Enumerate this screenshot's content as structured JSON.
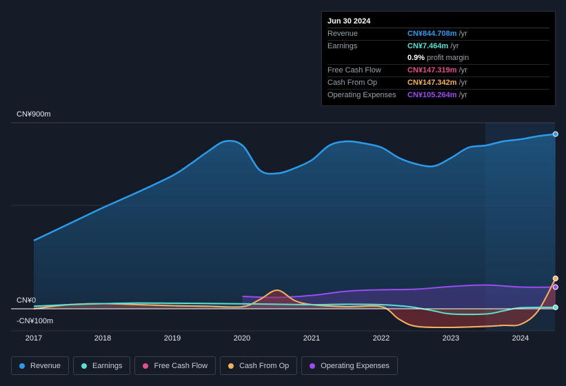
{
  "tooltip": {
    "date": "Jun 30 2024",
    "rows": [
      {
        "label": "Revenue",
        "value": "CN¥844.708m",
        "unit": "/yr",
        "color": "#2e9bea"
      },
      {
        "label": "Earnings",
        "value": "CN¥7.464m",
        "unit": "/yr",
        "color": "#5ee0d0"
      },
      {
        "label": "",
        "value": "0.9%",
        "unit": "profit margin",
        "color": "#ffffff"
      },
      {
        "label": "Free Cash Flow",
        "value": "CN¥147.319m",
        "unit": "/yr",
        "color": "#e0508a"
      },
      {
        "label": "Cash From Op",
        "value": "CN¥147.342m",
        "unit": "/yr",
        "color": "#f0b060"
      },
      {
        "label": "Operating Expenses",
        "value": "CN¥105.264m",
        "unit": "/yr",
        "color": "#9b4cf0"
      }
    ]
  },
  "legend": [
    {
      "label": "Revenue",
      "color": "#2e9bea"
    },
    {
      "label": "Earnings",
      "color": "#5ee0d0"
    },
    {
      "label": "Free Cash Flow",
      "color": "#e0508a"
    },
    {
      "label": "Cash From Op",
      "color": "#f0b060"
    },
    {
      "label": "Operating Expenses",
      "color": "#9b4cf0"
    }
  ],
  "chart_data": {
    "type": "area",
    "y_tick_labels": [
      "CN¥900m",
      "CN¥0",
      "-CN¥100m"
    ],
    "x_tick_labels": [
      "2017",
      "2018",
      "2019",
      "2020",
      "2021",
      "2022",
      "2023",
      "2024"
    ],
    "ylim": [
      -100,
      900
    ],
    "y_unit": "CN¥m",
    "xlim": [
      2017.0,
      2024.55
    ],
    "grid": true,
    "series": [
      {
        "name": "Revenue",
        "color": "#2e9bea",
        "x": [
          2017.0,
          2017.5,
          2018.0,
          2018.5,
          2019.0,
          2019.25,
          2019.5,
          2019.75,
          2020.0,
          2020.25,
          2020.5,
          2020.75,
          2021.0,
          2021.25,
          2021.5,
          2021.75,
          2022.0,
          2022.25,
          2022.5,
          2022.75,
          2023.0,
          2023.25,
          2023.5,
          2023.75,
          2024.0,
          2024.25,
          2024.5
        ],
        "values": [
          330,
          410,
          490,
          565,
          645,
          700,
          760,
          810,
          790,
          670,
          655,
          680,
          720,
          790,
          810,
          800,
          780,
          730,
          700,
          690,
          730,
          780,
          790,
          810,
          820,
          835,
          845
        ]
      },
      {
        "name": "Earnings",
        "color": "#5ee0d0",
        "x": [
          2017.0,
          2017.5,
          2018.0,
          2018.5,
          2019.0,
          2019.5,
          2020.0,
          2020.5,
          2021.0,
          2021.5,
          2022.0,
          2022.4,
          2022.75,
          2023.0,
          2023.5,
          2023.75,
          2024.0,
          2024.5
        ],
        "values": [
          12,
          20,
          25,
          28,
          27,
          26,
          24,
          22,
          20,
          22,
          20,
          10,
          -10,
          -25,
          -25,
          -10,
          5,
          7
        ]
      },
      {
        "name": "Free Cash Flow",
        "color": "#e0508a",
        "x": [
          2017.0,
          2017.5,
          2018.0,
          2018.5,
          2019.0,
          2019.5,
          2020.0,
          2020.25,
          2020.5,
          2020.75,
          2021.0,
          2021.5,
          2022.0,
          2022.25,
          2022.5,
          2023.0,
          2023.5,
          2023.75,
          2024.0,
          2024.25,
          2024.5
        ],
        "values": [
          0,
          20,
          25,
          20,
          15,
          12,
          10,
          45,
          90,
          40,
          20,
          10,
          10,
          -50,
          -85,
          -90,
          -85,
          -80,
          -75,
          -10,
          147
        ]
      },
      {
        "name": "Cash From Op",
        "color": "#f0b060",
        "x": [
          2017.0,
          2017.5,
          2018.0,
          2018.5,
          2019.0,
          2019.5,
          2020.0,
          2020.25,
          2020.5,
          2020.75,
          2021.0,
          2021.5,
          2022.0,
          2022.25,
          2022.5,
          2023.0,
          2023.5,
          2023.75,
          2024.0,
          2024.25,
          2024.5
        ],
        "values": [
          0,
          20,
          25,
          20,
          15,
          12,
          10,
          45,
          90,
          40,
          20,
          10,
          10,
          -50,
          -85,
          -90,
          -85,
          -80,
          -75,
          -10,
          147
        ]
      },
      {
        "name": "Operating Expenses",
        "color": "#9b4cf0",
        "x": [
          2020.0,
          2020.5,
          2021.0,
          2021.5,
          2022.0,
          2022.5,
          2023.0,
          2023.5,
          2024.0,
          2024.5
        ],
        "values": [
          60,
          55,
          65,
          85,
          92,
          95,
          108,
          115,
          105,
          105
        ]
      }
    ]
  }
}
